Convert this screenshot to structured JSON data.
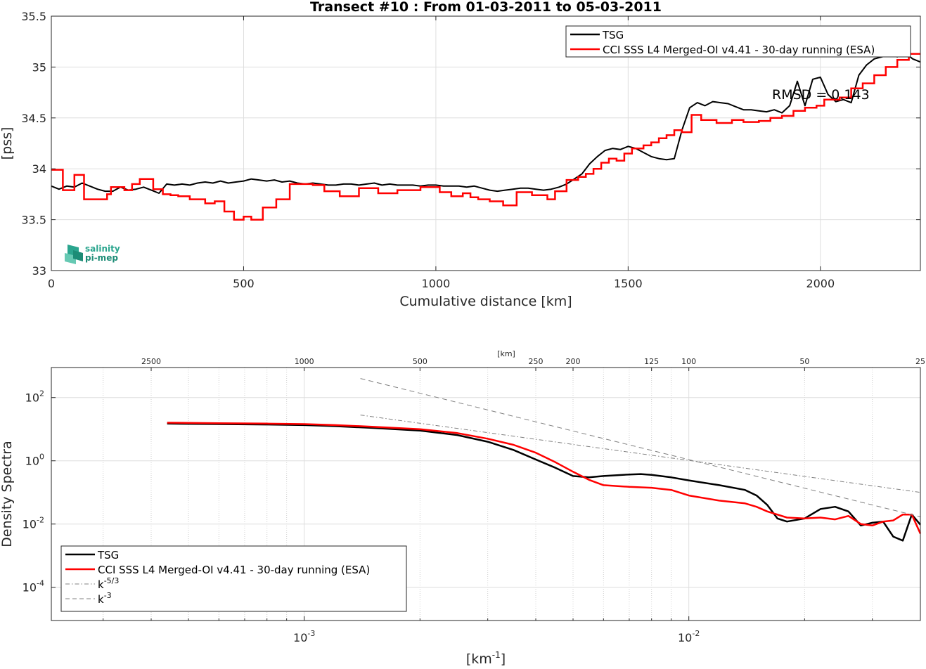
{
  "colors": {
    "tsg": "#000000",
    "cci": "#ff0000",
    "ref": "#808080"
  },
  "logo": {
    "line1": "salinity",
    "line2": "pi-mep",
    "icon": "salinity-pimep-logo-icon"
  },
  "chart_data": [
    {
      "type": "line",
      "title": "Transect #10 : From 01-03-2011 to 05-03-2011",
      "xlabel": "Cumulative distance [km]",
      "ylabel": "[pss]",
      "xlim": [
        0,
        2260
      ],
      "ylim": [
        33,
        35.5
      ],
      "xticks": [
        0,
        500,
        1000,
        1500,
        2000
      ],
      "xtick_labels": [
        "0",
        "500",
        "1000",
        "1500",
        "2000"
      ],
      "yticks": [
        33,
        33.5,
        34,
        34.5,
        35,
        35.5
      ],
      "ytick_labels": [
        "33",
        "33.5",
        "34",
        "34.5",
        "35",
        "35.5"
      ],
      "grid": true,
      "legend": "top-right",
      "annotation": "RMSD = 0.143",
      "series": [
        {
          "name": "TSG",
          "style": "line",
          "x": [
            0,
            20,
            40,
            60,
            80,
            100,
            120,
            140,
            160,
            180,
            200,
            220,
            240,
            260,
            280,
            300,
            320,
            340,
            360,
            380,
            400,
            420,
            440,
            460,
            480,
            500,
            520,
            540,
            560,
            580,
            600,
            620,
            640,
            660,
            680,
            700,
            720,
            740,
            760,
            780,
            800,
            820,
            840,
            860,
            880,
            900,
            920,
            940,
            960,
            980,
            1000,
            1020,
            1040,
            1060,
            1080,
            1100,
            1120,
            1140,
            1160,
            1180,
            1200,
            1220,
            1240,
            1260,
            1280,
            1300,
            1320,
            1340,
            1360,
            1380,
            1400,
            1420,
            1440,
            1460,
            1480,
            1500,
            1520,
            1540,
            1560,
            1580,
            1600,
            1620,
            1640,
            1660,
            1680,
            1700,
            1720,
            1740,
            1760,
            1780,
            1800,
            1820,
            1840,
            1860,
            1880,
            1900,
            1920,
            1940,
            1960,
            1980,
            2000,
            2020,
            2040,
            2060,
            2080,
            2100,
            2120,
            2140,
            2160,
            2180,
            2200,
            2220,
            2240,
            2260
          ],
          "y": [
            33.83,
            33.8,
            33.83,
            33.82,
            33.86,
            33.83,
            33.8,
            33.78,
            33.78,
            33.82,
            33.79,
            33.8,
            33.82,
            33.79,
            33.76,
            33.85,
            33.84,
            33.85,
            33.84,
            33.86,
            33.87,
            33.86,
            33.88,
            33.86,
            33.87,
            33.88,
            33.9,
            33.89,
            33.88,
            33.89,
            33.87,
            33.88,
            33.86,
            33.85,
            33.86,
            33.85,
            33.84,
            33.84,
            33.85,
            33.85,
            33.84,
            33.85,
            33.86,
            33.84,
            33.85,
            33.84,
            33.84,
            33.84,
            33.83,
            33.84,
            33.84,
            33.83,
            33.83,
            33.83,
            33.82,
            33.83,
            33.81,
            33.79,
            33.78,
            33.79,
            33.8,
            33.81,
            33.81,
            33.8,
            33.79,
            33.8,
            33.82,
            33.85,
            33.9,
            33.95,
            34.05,
            34.12,
            34.18,
            34.2,
            34.19,
            34.22,
            34.2,
            34.16,
            34.12,
            34.1,
            34.09,
            34.1,
            34.38,
            34.6,
            34.65,
            34.62,
            34.66,
            34.65,
            34.64,
            34.61,
            34.58,
            34.58,
            34.57,
            34.56,
            34.58,
            34.55,
            34.62,
            34.86,
            34.62,
            34.88,
            34.9,
            34.73,
            34.66,
            34.68,
            34.65,
            34.92,
            35.02,
            35.08,
            35.1,
            35.12,
            35.1,
            35.14,
            35.08,
            35.05
          ]
        },
        {
          "name": "CCI SSS L4 Merged-OI v4.41 - 30-day running (ESA)",
          "style": "step",
          "x": [
            0,
            30,
            60,
            85,
            145,
            155,
            190,
            210,
            230,
            265,
            290,
            310,
            330,
            360,
            400,
            425,
            450,
            475,
            500,
            520,
            550,
            585,
            620,
            650,
            680,
            710,
            750,
            800,
            850,
            900,
            960,
            1010,
            1040,
            1070,
            1090,
            1110,
            1140,
            1175,
            1210,
            1250,
            1290,
            1310,
            1340,
            1370,
            1390,
            1410,
            1430,
            1450,
            1470,
            1490,
            1510,
            1540,
            1560,
            1580,
            1600,
            1620,
            1640,
            1665,
            1690,
            1730,
            1770,
            1800,
            1840,
            1870,
            1900,
            1930,
            1960,
            1990,
            2010,
            2050,
            2080,
            2110,
            2140,
            2170,
            2200,
            2230,
            2260
          ],
          "y": [
            33.99,
            33.79,
            33.94,
            33.7,
            33.75,
            33.82,
            33.79,
            33.85,
            33.9,
            33.8,
            33.75,
            33.74,
            33.73,
            33.7,
            33.66,
            33.68,
            33.58,
            33.5,
            33.53,
            33.5,
            33.62,
            33.7,
            33.85,
            33.85,
            33.84,
            33.78,
            33.73,
            33.81,
            33.76,
            33.79,
            33.82,
            33.77,
            33.73,
            33.76,
            33.72,
            33.7,
            33.68,
            33.64,
            33.77,
            33.74,
            33.7,
            33.78,
            33.89,
            33.92,
            33.95,
            34.0,
            34.06,
            34.1,
            34.08,
            34.15,
            34.2,
            34.23,
            34.26,
            34.3,
            34.33,
            34.38,
            34.36,
            34.53,
            34.48,
            34.45,
            34.48,
            34.46,
            34.47,
            34.5,
            34.52,
            34.57,
            34.6,
            34.62,
            34.68,
            34.7,
            34.79,
            34.84,
            34.92,
            35.0,
            35.07,
            35.13,
            35.13
          ]
        }
      ]
    },
    {
      "type": "line",
      "title": "",
      "xlabel": "[km^-1]",
      "ylabel": "Density Spectra",
      "xscale": "log",
      "yscale": "log",
      "xlim": [
        0.00022,
        0.04
      ],
      "ylim": [
        8.9e-06,
        890
      ],
      "xticks": [
        0.001,
        0.01
      ],
      "xtick_labels": [
        {
          "base": "10",
          "exp": "-3"
        },
        {
          "base": "10",
          "exp": "-2"
        }
      ],
      "yticks": [
        0.0001,
        0.01,
        1,
        100
      ],
      "ytick_labels": [
        {
          "base": "10",
          "exp": "-4"
        },
        {
          "base": "10",
          "exp": "-2"
        },
        {
          "base": "10",
          "exp": "0"
        },
        {
          "base": "10",
          "exp": "2"
        }
      ],
      "top_axis_label": "[km]",
      "top_ticks_km": [
        2500,
        1000,
        500,
        250,
        200,
        125,
        100,
        50,
        25
      ],
      "top_tick_labels": [
        "2500",
        "1000",
        "500",
        "250",
        "200",
        "125",
        "100",
        "50",
        "25"
      ],
      "grid": true,
      "legend": "bottom-left",
      "legend_items": [
        {
          "label": "TSG",
          "style": "solid",
          "color": "#000000"
        },
        {
          "label": "CCI SSS L4 Merged-OI v4.41 - 30-day running (ESA)",
          "style": "solid",
          "color": "#ff0000"
        },
        {
          "label_base": "k",
          "label_exp": "-5/3",
          "style": "dashdot",
          "color": "#808080"
        },
        {
          "label_base": "k",
          "label_exp": "-3",
          "style": "dashed",
          "color": "#808080"
        }
      ],
      "series": [
        {
          "name": "TSG",
          "x": [
            0.00044,
            0.0006,
            0.0008,
            0.001,
            0.0012,
            0.0015,
            0.002,
            0.0025,
            0.003,
            0.0035,
            0.004,
            0.0045,
            0.005,
            0.0055,
            0.006,
            0.007,
            0.0075,
            0.008,
            0.009,
            0.01,
            0.012,
            0.014,
            0.015,
            0.016,
            0.017,
            0.018,
            0.02,
            0.022,
            0.024,
            0.026,
            0.028,
            0.03,
            0.032,
            0.034,
            0.036,
            0.038,
            0.04
          ],
          "y": [
            15,
            14.5,
            14,
            13.5,
            12.5,
            11,
            9,
            6.5,
            4,
            2.2,
            1.1,
            0.6,
            0.33,
            0.3,
            0.33,
            0.37,
            0.38,
            0.36,
            0.3,
            0.24,
            0.17,
            0.12,
            0.08,
            0.04,
            0.015,
            0.012,
            0.015,
            0.03,
            0.035,
            0.025,
            0.009,
            0.011,
            0.012,
            0.004,
            0.003,
            0.02,
            0.0095
          ]
        },
        {
          "name": "CCI SSS L4 Merged-OI v4.41 - 30-day running (ESA)",
          "x": [
            0.00044,
            0.0006,
            0.0008,
            0.001,
            0.0012,
            0.0015,
            0.002,
            0.0025,
            0.003,
            0.0035,
            0.004,
            0.0045,
            0.005,
            0.0055,
            0.006,
            0.007,
            0.008,
            0.009,
            0.01,
            0.012,
            0.014,
            0.015,
            0.016,
            0.018,
            0.02,
            0.022,
            0.024,
            0.026,
            0.028,
            0.03,
            0.032,
            0.034,
            0.036,
            0.038,
            0.04
          ],
          "y": [
            16,
            15.5,
            15,
            14.5,
            13.5,
            12,
            10,
            7.5,
            5,
            3.2,
            1.8,
            0.9,
            0.45,
            0.25,
            0.17,
            0.15,
            0.14,
            0.12,
            0.08,
            0.055,
            0.045,
            0.035,
            0.025,
            0.016,
            0.015,
            0.016,
            0.014,
            0.018,
            0.01,
            0.009,
            0.012,
            0.013,
            0.02,
            0.02,
            0.005
          ]
        },
        {
          "name": "k^-5/3",
          "style": "dashdot",
          "x": [
            0.0014,
            0.04
          ],
          "y": [
            28,
            0.1
          ]
        },
        {
          "name": "k^-3",
          "style": "dashed",
          "x": [
            0.0014,
            0.04
          ],
          "y": [
            400,
            0.017
          ]
        }
      ]
    }
  ]
}
